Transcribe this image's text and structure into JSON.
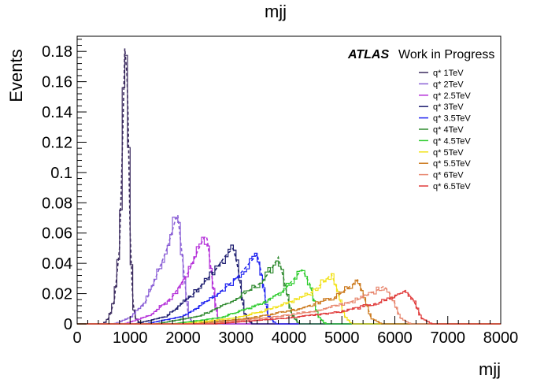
{
  "chart_data": {
    "type": "line",
    "title": "mjj",
    "xlabel": "mjj",
    "ylabel": "Events",
    "xlim": [
      0,
      8000
    ],
    "ylim": [
      0,
      0.19
    ],
    "xticks": [
      0,
      1000,
      2000,
      3000,
      4000,
      5000,
      6000,
      7000,
      8000
    ],
    "yticks": [
      0,
      0.02,
      0.04,
      0.06,
      0.08,
      0.1,
      0.12,
      0.14,
      0.16,
      0.18
    ],
    "yticklabels": [
      "0",
      "0.02",
      "0.04",
      "0.06",
      "0.08",
      "0.1",
      "0.12",
      "0.14",
      "0.16",
      "0.18"
    ],
    "grid": false,
    "legend_position": "top-right",
    "annotation": {
      "bold": "ATLAS",
      "text": "Work in Progress"
    },
    "series": [
      {
        "name": "q* 1TeV",
        "color": "#3a2a5e",
        "mass": 920,
        "peak": 0.182,
        "x": [
          500,
          600,
          700,
          800,
          850,
          900,
          950,
          1000,
          1050,
          1100,
          1200
        ],
        "y": [
          0.0,
          0.004,
          0.015,
          0.05,
          0.11,
          0.182,
          0.16,
          0.06,
          0.015,
          0.004,
          0.0
        ]
      },
      {
        "name": "q* 2TeV",
        "color": "#8a5fd6",
        "mass": 1900,
        "peak": 0.072,
        "x": [
          700,
          1000,
          1300,
          1500,
          1700,
          1850,
          1900,
          2000,
          2100,
          2200
        ],
        "y": [
          0.0,
          0.004,
          0.015,
          0.032,
          0.05,
          0.068,
          0.072,
          0.04,
          0.005,
          0.0
        ]
      },
      {
        "name": "q* 2.5TeV",
        "color": "#b42fd9",
        "mass": 2450,
        "peak": 0.058,
        "x": [
          900,
          1400,
          1800,
          2100,
          2300,
          2400,
          2450,
          2550,
          2650,
          2750
        ],
        "y": [
          0.0,
          0.006,
          0.018,
          0.034,
          0.05,
          0.057,
          0.058,
          0.03,
          0.004,
          0.0
        ]
      },
      {
        "name": "q* 3TeV",
        "color": "#1a1a6e",
        "mass": 2950,
        "peak": 0.05,
        "x": [
          1100,
          1700,
          2200,
          2600,
          2800,
          2950,
          3050,
          3150,
          3300
        ],
        "y": [
          0.0,
          0.005,
          0.02,
          0.035,
          0.045,
          0.05,
          0.035,
          0.008,
          0.0
        ]
      },
      {
        "name": "q* 3.5TeV",
        "color": "#1f23f0",
        "mass": 3400,
        "peak": 0.046,
        "x": [
          1300,
          2000,
          2600,
          3000,
          3250,
          3400,
          3500,
          3600,
          3750
        ],
        "y": [
          0.0,
          0.005,
          0.018,
          0.03,
          0.04,
          0.046,
          0.03,
          0.006,
          0.0
        ]
      },
      {
        "name": "q* 4TeV",
        "color": "#2f8a2f",
        "mass": 3800,
        "peak": 0.044,
        "x": [
          1500,
          2300,
          3000,
          3500,
          3700,
          3800,
          3900,
          4050,
          4200
        ],
        "y": [
          0.0,
          0.005,
          0.016,
          0.028,
          0.038,
          0.044,
          0.03,
          0.006,
          0.0
        ]
      },
      {
        "name": "q* 4.5TeV",
        "color": "#2ecc2e",
        "mass": 4250,
        "peak": 0.036,
        "x": [
          1800,
          2700,
          3400,
          3900,
          4150,
          4250,
          4400,
          4550,
          4700
        ],
        "y": [
          0.0,
          0.004,
          0.012,
          0.022,
          0.032,
          0.036,
          0.026,
          0.005,
          0.0
        ]
      },
      {
        "name": "q* 5TeV",
        "color": "#f2e21a",
        "mass": 4800,
        "peak": 0.033,
        "x": [
          2000,
          3000,
          3800,
          4400,
          4700,
          4800,
          4900,
          5050,
          5200
        ],
        "y": [
          0.0,
          0.004,
          0.011,
          0.02,
          0.029,
          0.033,
          0.024,
          0.005,
          0.0
        ]
      },
      {
        "name": "q* 5.5TeV",
        "color": "#cc7a1e",
        "mass": 5300,
        "peak": 0.029,
        "x": [
          2200,
          3300,
          4200,
          4900,
          5200,
          5300,
          5400,
          5550,
          5750
        ],
        "y": [
          0.0,
          0.004,
          0.01,
          0.018,
          0.026,
          0.029,
          0.02,
          0.004,
          0.0
        ]
      },
      {
        "name": "q* 6TeV",
        "color": "#e8876f",
        "mass": 5800,
        "peak": 0.025,
        "x": [
          2400,
          3600,
          4600,
          5300,
          5650,
          5800,
          5950,
          6100,
          6300
        ],
        "y": [
          0.0,
          0.004,
          0.009,
          0.016,
          0.022,
          0.025,
          0.018,
          0.004,
          0.0
        ]
      },
      {
        "name": "q* 6.5TeV",
        "color": "#e03a3a",
        "mass": 6200,
        "peak": 0.022,
        "x": [
          2600,
          4000,
          5000,
          5700,
          6050,
          6200,
          6350,
          6500,
          6700
        ],
        "y": [
          0.0,
          0.004,
          0.008,
          0.014,
          0.019,
          0.022,
          0.016,
          0.004,
          0.0
        ]
      }
    ]
  }
}
